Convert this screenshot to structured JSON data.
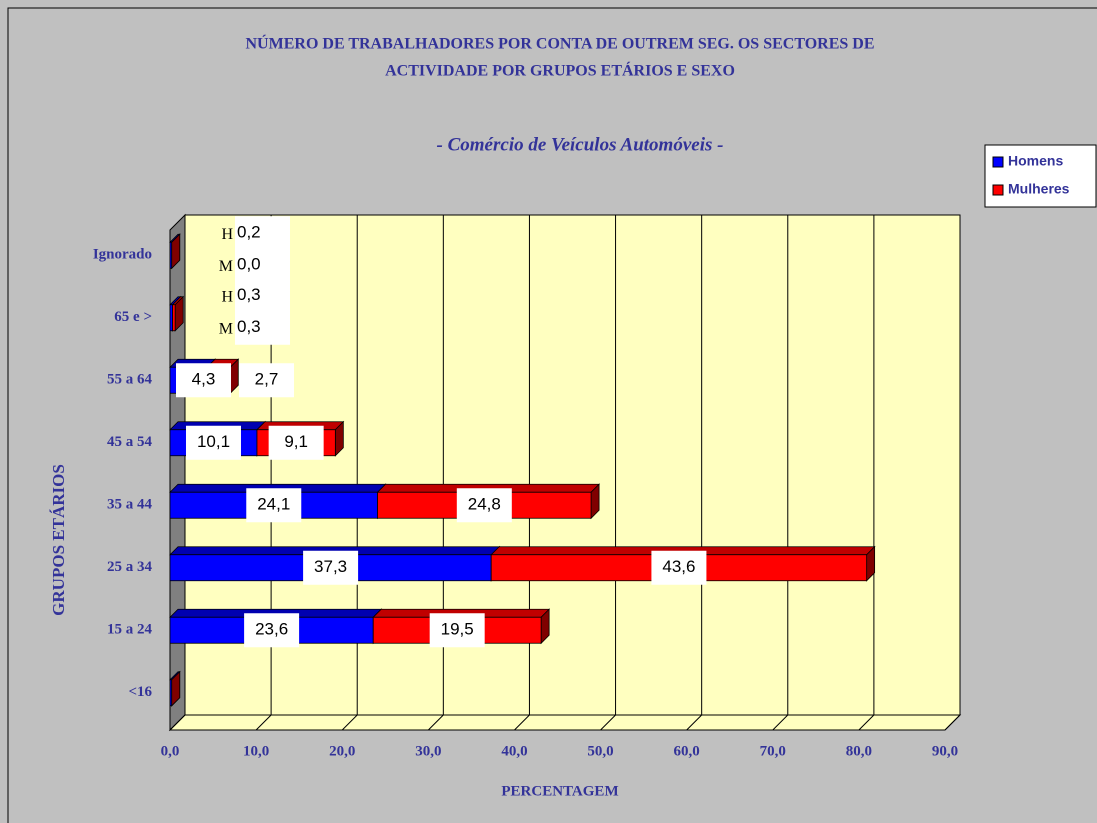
{
  "chart_data": {
    "type": "stacked-bar-3d",
    "title_lines": [
      "NÚMERO DE TRABALHADORES POR CONTA DE OUTREM SEG. OS SECTORES DE",
      "ACTIVIDADE POR GRUPOS ETÁRIOS E SEXO"
    ],
    "subtitle": "- Comércio de  Veículos  Automóveis -",
    "x_label": "PERCENTAGEM",
    "y_label": "GRUPOS ETÁRIOS",
    "categories": [
      "<16",
      "15 a 24",
      "25 a 34",
      "35 a 44",
      "45 a 54",
      "55 a 64",
      "65 e >",
      "Ignorado"
    ],
    "series": [
      {
        "name": "Homens",
        "short_name": "H",
        "color": "#0000ff",
        "values": [
          0.2,
          23.6,
          37.3,
          24.1,
          10.1,
          4.3,
          0.3,
          0.2
        ],
        "value_labels": [
          null,
          "23,6",
          "37,3",
          "24,1",
          "10,1",
          "4,3",
          "0,3",
          "0,2"
        ]
      },
      {
        "name": "Mulheres",
        "short_name": "M",
        "color": "#ff0000",
        "values": [
          0,
          19.5,
          43.6,
          24.8,
          9.1,
          2.7,
          0.3,
          0.0
        ],
        "value_labels": [
          null,
          "19,5",
          "43,6",
          "24,8",
          "9,1",
          "2,7",
          "0,3",
          "0,0"
        ]
      }
    ],
    "xlim": [
      0,
      90
    ],
    "xticks": [
      {
        "value": 0,
        "label": "0,0"
      },
      {
        "value": 10,
        "label": "10,0"
      },
      {
        "value": 20,
        "label": "20,0"
      },
      {
        "value": 30,
        "label": "30,0"
      },
      {
        "value": 40,
        "label": "40,0"
      },
      {
        "value": 50,
        "label": "50,0"
      },
      {
        "value": 60,
        "label": "60,0"
      },
      {
        "value": 70,
        "label": "70,0"
      },
      {
        "value": 80,
        "label": "80,0"
      },
      {
        "value": 90,
        "label": "90,0"
      }
    ],
    "grid": true,
    "legend": "right"
  }
}
